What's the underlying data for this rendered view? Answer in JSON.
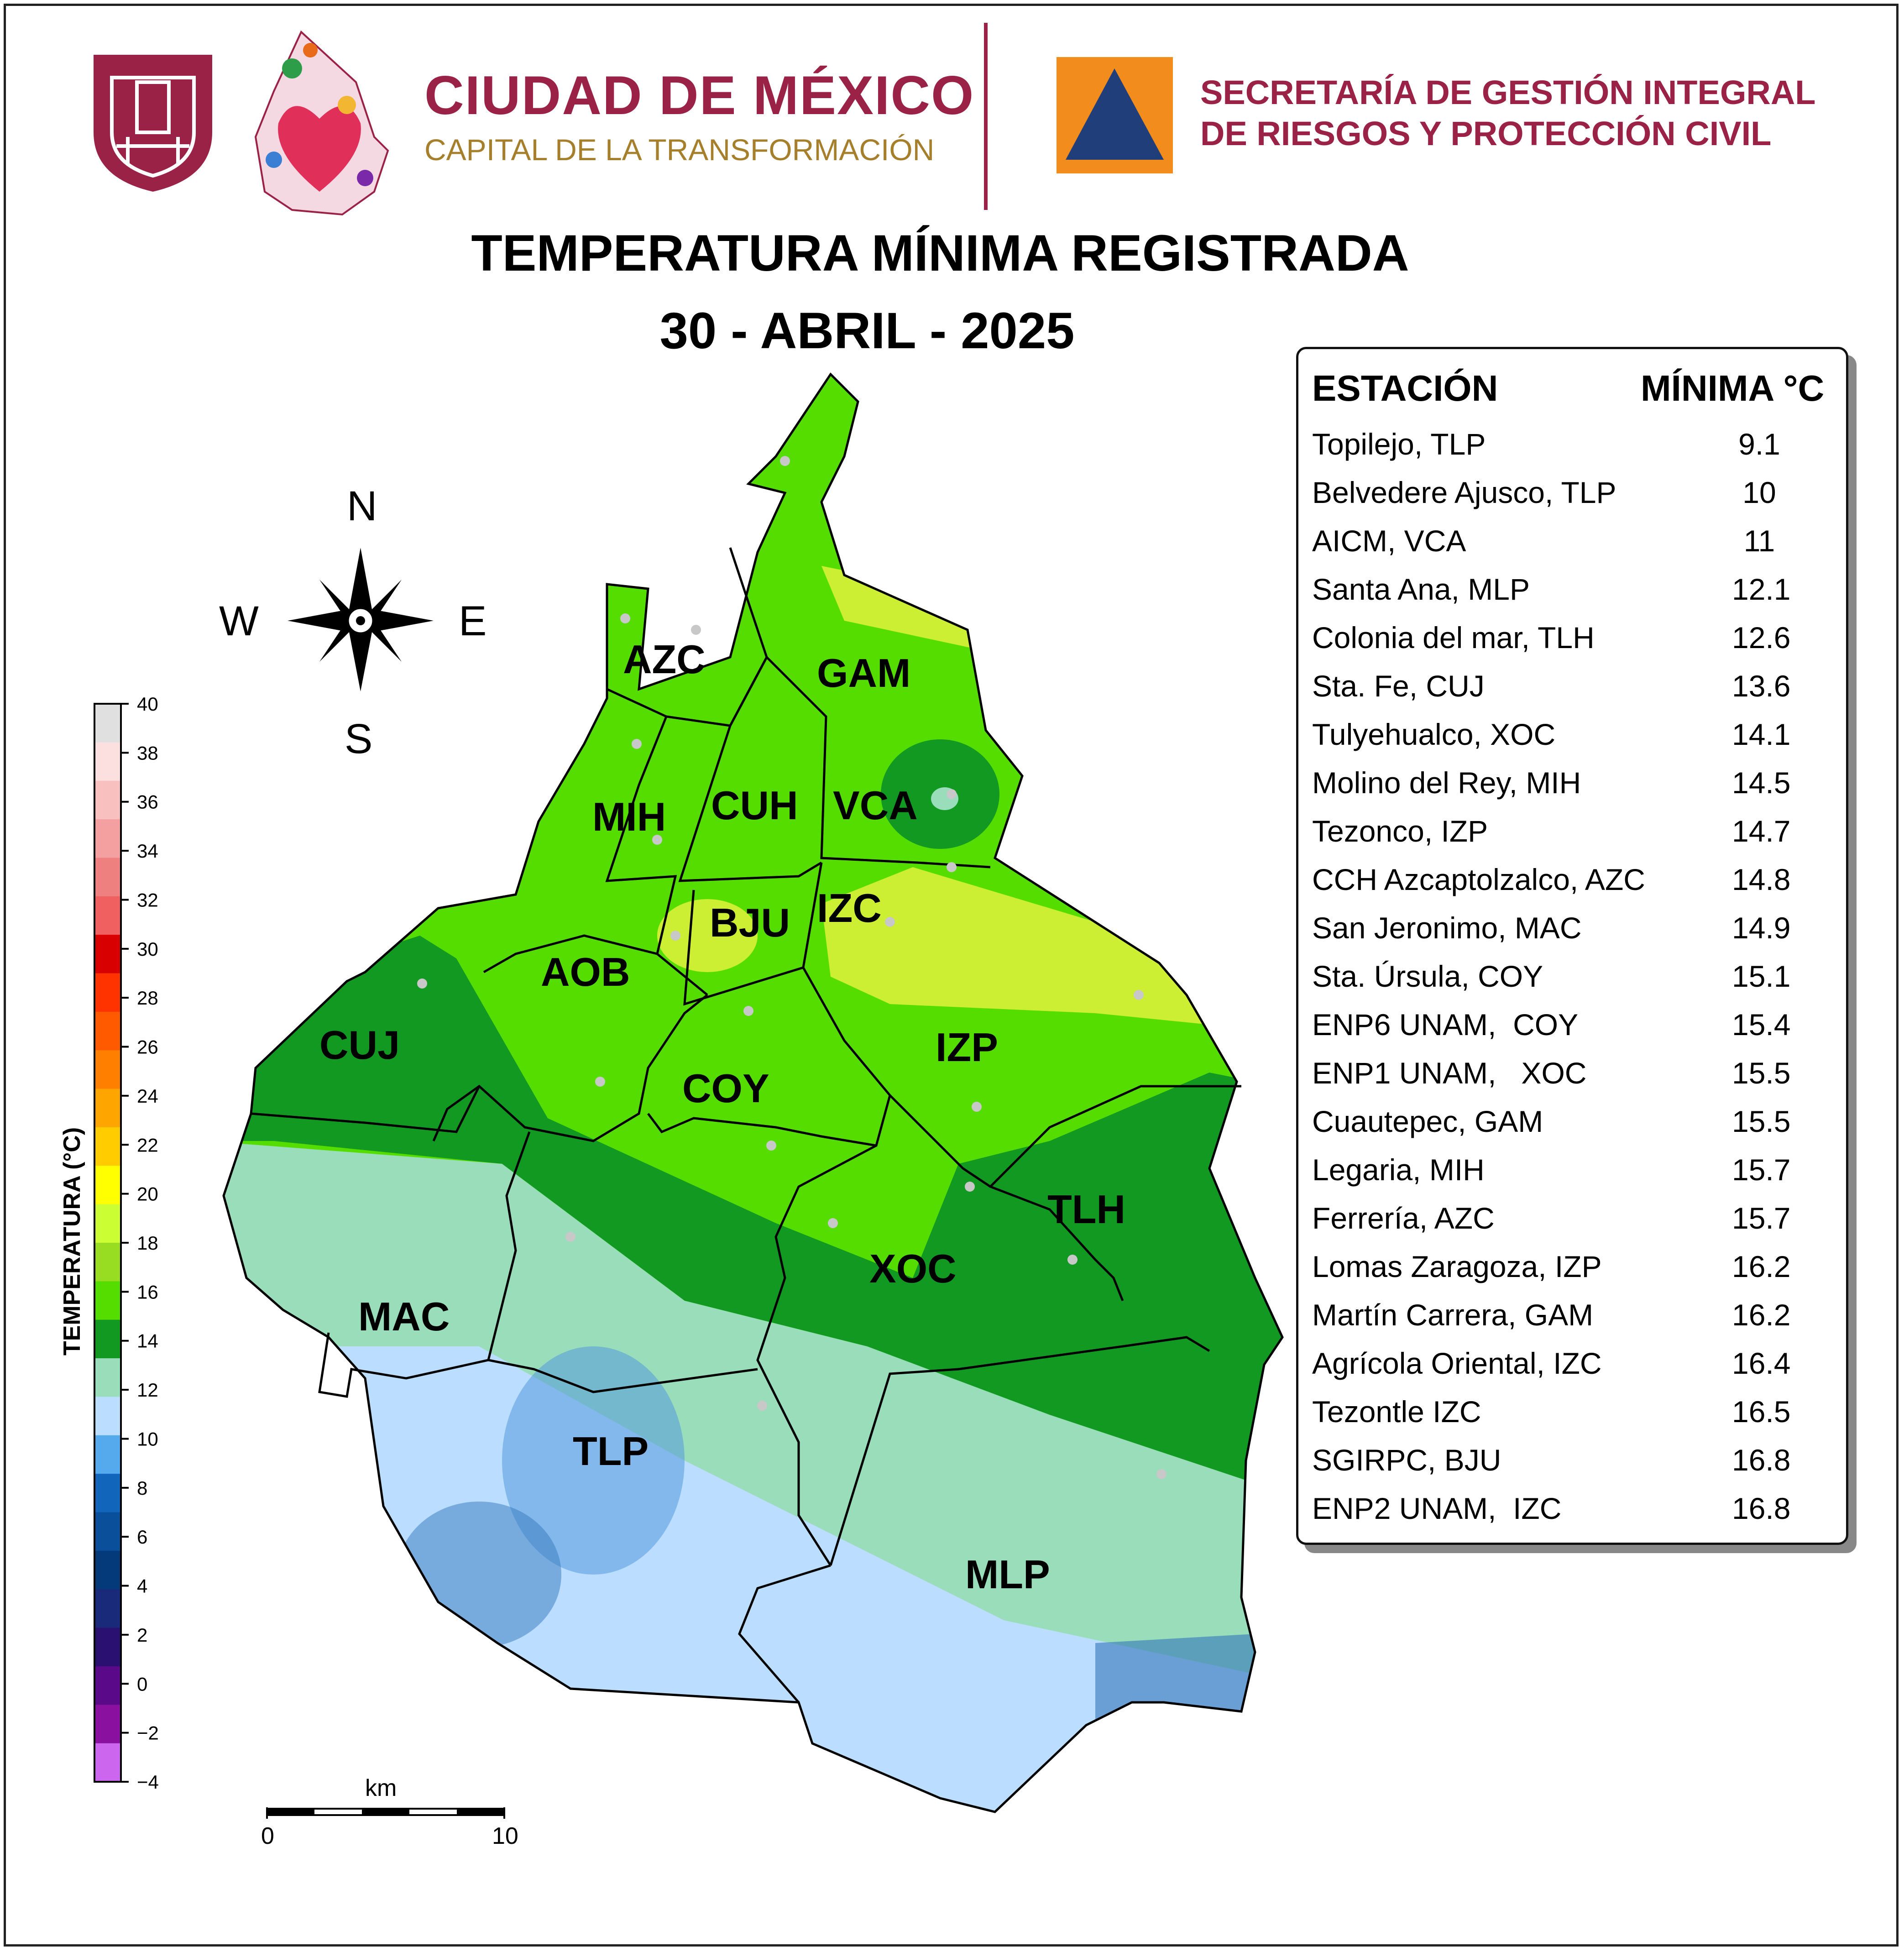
{
  "header": {
    "city_name": "CIUDAD DE MÉXICO",
    "city_tagline": "CAPITAL DE LA TRANSFORMACIÓN",
    "secretariat_line1": "SECRETARÍA DE GESTIÓN INTEGRAL",
    "secretariat_line2": "DE RIESGOS Y PROTECCIÓN CIVIL",
    "brand_color": "#9b2247",
    "accent_color": "#a57f2c",
    "logo_icons": [
      "cdmx-castle-shield-icon",
      "cdmx-heart-floral-icon",
      "civil-protection-triangle-icon"
    ]
  },
  "map": {
    "title": "TEMPERATURA MÍNIMA REGISTRADA",
    "date": "30 - ABRIL - 2025",
    "districts": [
      "AZC",
      "GAM",
      "MIH",
      "CUH",
      "VCA",
      "BJU",
      "IZC",
      "AOB",
      "CUJ",
      "COY",
      "IZP",
      "TLH",
      "XOC",
      "MAC",
      "TLP",
      "MLP"
    ],
    "compass": {
      "north": "N",
      "south": "S",
      "east": "E",
      "west": "W"
    },
    "colorbar": {
      "title": "TEMPERATURA (°C)",
      "ticks": [
        "40",
        "38",
        "36",
        "34",
        "32",
        "30",
        "28",
        "26",
        "24",
        "22",
        "20",
        "18",
        "16",
        "14",
        "12",
        "10",
        "8",
        "6",
        "4",
        "2",
        "0",
        "−2",
        "−4"
      ],
      "colors_top_to_bottom": [
        "#e0e0e0",
        "#fce0e0",
        "#f9c0c0",
        "#f5a0a0",
        "#ef8080",
        "#f06060",
        "#d80000",
        "#ff3300",
        "#ff5a00",
        "#ff7f00",
        "#ffa500",
        "#ffcc00",
        "#ffff00",
        "#ccff33",
        "#99dd22",
        "#55dd00",
        "#119922",
        "#99ddbb",
        "#bbddff",
        "#55aaee",
        "#1166bb",
        "#0a4f9a",
        "#053a7a",
        "#1a2a7a",
        "#2a1070",
        "#5a0a88",
        "#8a10a0",
        "#cc66ee"
      ]
    },
    "scale_bar": {
      "unit": "km",
      "start": "0",
      "end": "10"
    }
  },
  "stations": {
    "header_name": "ESTACIÓN",
    "header_min": "MÍNIMA °C",
    "rows": [
      {
        "name": "Topilejo, TLP",
        "value": "9.1"
      },
      {
        "name": "Belvedere Ajusco, TLP",
        "value": "10"
      },
      {
        "name": "AICM, VCA",
        "value": "11"
      },
      {
        "name": "Santa Ana, MLP",
        "value": "12.1"
      },
      {
        "name": "Colonia del mar, TLH",
        "value": "12.6"
      },
      {
        "name": "Sta. Fe, CUJ",
        "value": "13.6"
      },
      {
        "name": "Tulyehualco, XOC",
        "value": "14.1"
      },
      {
        "name": "Molino del Rey, MIH",
        "value": "14.5"
      },
      {
        "name": "Tezonco, IZP",
        "value": "14.7"
      },
      {
        "name": "CCH Azcaptolzalco, AZC",
        "value": "14.8"
      },
      {
        "name": "San Jeronimo, MAC",
        "value": "14.9"
      },
      {
        "name": "Sta. Úrsula, COY",
        "value": "15.1"
      },
      {
        "name": "ENP6 UNAM,  COY",
        "value": "15.4"
      },
      {
        "name": "ENP1 UNAM,   XOC",
        "value": "15.5"
      },
      {
        "name": "Cuautepec, GAM",
        "value": "15.5"
      },
      {
        "name": "Legaria, MIH",
        "value": "15.7"
      },
      {
        "name": "Ferrería, AZC",
        "value": "15.7"
      },
      {
        "name": "Lomas Zaragoza, IZP",
        "value": "16.2"
      },
      {
        "name": "Martín Carrera, GAM",
        "value": "16.2"
      },
      {
        "name": "Agrícola Oriental, IZC",
        "value": "16.4"
      },
      {
        "name": "Tezontle IZC",
        "value": "16.5"
      },
      {
        "name": "SGIRPC, BJU",
        "value": "16.8"
      },
      {
        "name": "ENP2 UNAM,  IZC",
        "value": "16.8"
      }
    ]
  }
}
